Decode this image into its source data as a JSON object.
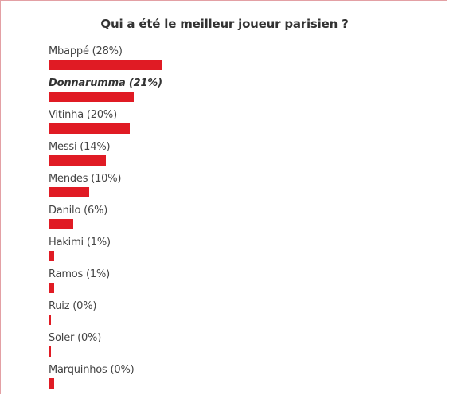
{
  "poll": {
    "question": "Qui a été le meilleur joueur parisien ?",
    "accent_color": "#e01b24",
    "bar_max_percent": 28
  },
  "chart_data": {
    "type": "bar",
    "orientation": "horizontal",
    "title": "Qui a été le meilleur joueur parisien ?",
    "categories": [
      "Mbappé",
      "Donnarumma",
      "Vitinha",
      "Messi",
      "Mendes",
      "Danilo",
      "Hakimi",
      "Ramos",
      "Ruiz",
      "Soler",
      "Marquinhos"
    ],
    "labels": [
      "Mbappé (28%)",
      "Donnarumma (21%)",
      "Vitinha (20%)",
      "Messi (14%)",
      "Mendes (10%)",
      "Danilo (6%)",
      "Hakimi (1%)",
      "Ramos (1%)",
      "Ruiz (0%)",
      "Soler (0%)",
      "Marquinhos (0%)"
    ],
    "values": [
      28,
      21,
      20,
      14,
      10,
      6,
      1,
      1,
      0,
      0,
      0
    ],
    "highlighted": "Donnarumma (21%)",
    "grid": false,
    "legend": "none"
  }
}
